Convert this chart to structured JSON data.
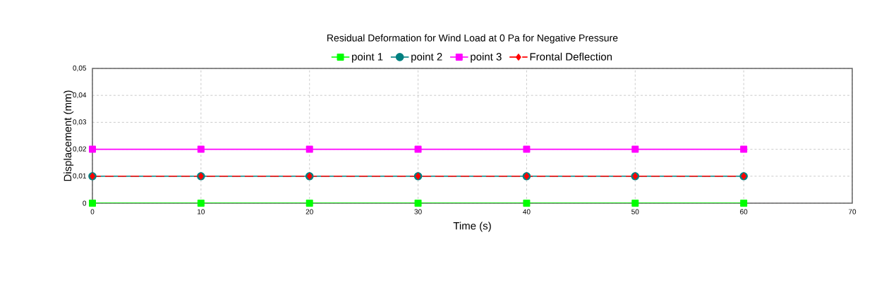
{
  "chart_data": {
    "type": "line",
    "title": "Residual Deformation for Wind Load at 0 Pa for Negative Pressure",
    "xlabel": "Time (s)",
    "ylabel": "Displacement (mm)",
    "x": [
      0,
      10,
      20,
      30,
      40,
      50,
      60
    ],
    "series": [
      {
        "name": "point 1",
        "color": "#00ff00",
        "marker": "square",
        "values": [
          0,
          0,
          0,
          0,
          0,
          0,
          0
        ]
      },
      {
        "name": "point 2",
        "color": "#008080",
        "marker": "circle",
        "values": [
          0.01,
          0.01,
          0.01,
          0.01,
          0.01,
          0.01,
          0.01
        ]
      },
      {
        "name": "point 3",
        "color": "#ff00ff",
        "marker": "square",
        "values": [
          0.02,
          0.02,
          0.02,
          0.02,
          0.02,
          0.02,
          0.02
        ]
      },
      {
        "name": "Frontal Deflection",
        "color": "#ff0000",
        "marker": "diamond",
        "line_style": "dashed",
        "values": [
          0.01,
          0.01,
          0.01,
          0.01,
          0.01,
          0.01,
          0.01
        ]
      }
    ],
    "xlim": [
      0,
      70
    ],
    "xticks": [
      0,
      10,
      20,
      30,
      40,
      50,
      60,
      70
    ],
    "ylim": [
      0,
      0.05
    ],
    "yticks": [
      0,
      {
        "value": 0.01,
        "label": "0,01"
      },
      {
        "value": 0.02,
        "label": "0,02"
      },
      {
        "value": 0.03,
        "label": "0,03"
      },
      {
        "value": 0.04,
        "label": "0,04"
      },
      {
        "value": 0.05,
        "label": "0,05"
      }
    ],
    "grid": true,
    "legend": "top",
    "line_style": "solid"
  }
}
